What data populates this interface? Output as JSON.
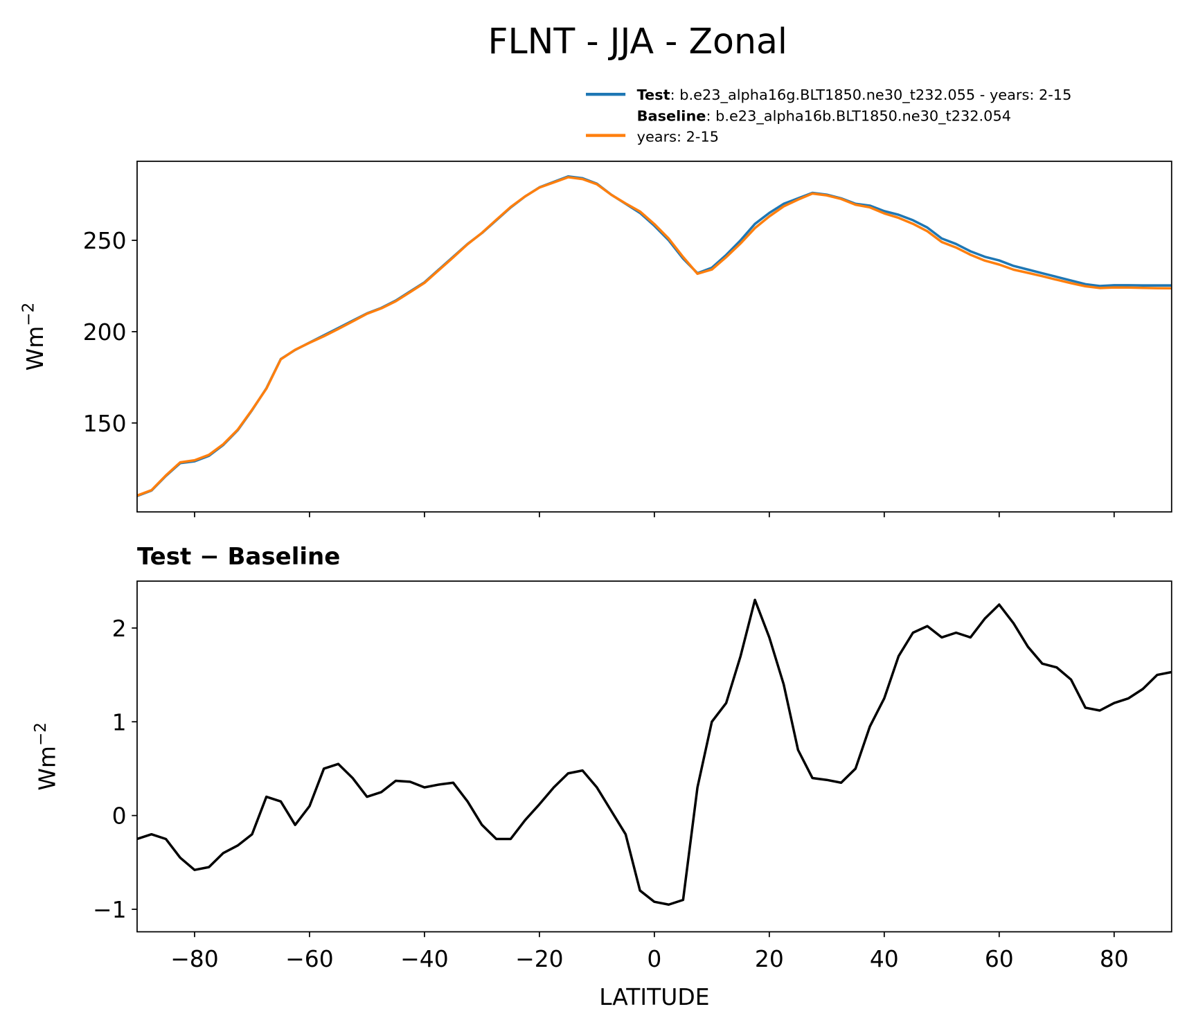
{
  "title": "FLNT - JJA - Zonal",
  "chart_data": [
    {
      "type": "line",
      "ylabel": "Wm",
      "ylabel_exponent": "−2",
      "x": [
        -90,
        -87.5,
        -85,
        -82.5,
        -80,
        -77.5,
        -75,
        -72.5,
        -70,
        -67.5,
        -65,
        -62.5,
        -60,
        -57.5,
        -55,
        -52.5,
        -50,
        -47.5,
        -45,
        -42.5,
        -40,
        -37.5,
        -35,
        -32.5,
        -30,
        -27.5,
        -25,
        -22.5,
        -20,
        -17.5,
        -15,
        -12.5,
        -10,
        -7.5,
        -5,
        -2.5,
        0,
        2.5,
        5,
        7.5,
        10,
        12.5,
        15,
        17.5,
        20,
        22.5,
        25,
        27.5,
        30,
        32.5,
        35,
        37.5,
        40,
        42.5,
        45,
        47.5,
        50,
        52.5,
        55,
        57.5,
        60,
        62.5,
        65,
        67.5,
        70,
        72.5,
        75,
        77.5,
        80,
        82.5,
        85,
        87.5,
        90
      ],
      "series": [
        {
          "name": "Test",
          "description": [
            ": b.e23_alpha16g.BLT1850.ne30_t232.055 - years: 2-15"
          ],
          "color": "#1f77b4",
          "values": [
            110,
            113,
            121,
            128,
            129,
            132,
            138,
            146,
            157,
            169,
            185,
            190,
            194,
            198,
            202,
            206,
            210,
            213,
            217,
            222,
            227,
            234,
            241,
            248,
            254,
            261,
            268,
            274,
            279,
            282,
            285,
            284,
            281,
            275,
            270,
            265,
            258,
            250,
            240,
            232,
            235,
            242,
            250,
            259,
            265,
            270,
            273,
            276,
            275,
            273,
            270,
            269,
            266,
            264,
            261,
            257,
            251,
            248,
            244,
            241,
            239,
            236,
            234,
            232,
            230,
            228,
            226,
            225,
            225.4,
            225.4,
            225.3,
            225.3,
            225.3
          ]
        },
        {
          "name": "Baseline",
          "description": [
            ": b.e23_alpha16b.BLT1850.ne30_t232.054",
            "years: 2-15"
          ],
          "color": "#ff7f0e",
          "values": [
            110.25,
            113.2,
            121.25,
            128.45,
            129.58,
            132.55,
            138.4,
            146.32,
            157.2,
            168.8,
            184.85,
            190.1,
            193.9,
            197.5,
            201.45,
            205.6,
            209.8,
            212.75,
            216.63,
            221.64,
            226.7,
            233.67,
            240.65,
            247.85,
            254.1,
            261.25,
            268.25,
            274.05,
            278.88,
            281.7,
            284.55,
            283.52,
            280.7,
            274.95,
            270.2,
            265.8,
            258.92,
            250.95,
            240.9,
            231.7,
            234,
            240.8,
            248.3,
            256.7,
            263.1,
            268.6,
            272.3,
            275.6,
            274.62,
            272.65,
            269.5,
            268.05,
            264.75,
            262.3,
            259.05,
            254.98,
            249.1,
            246.05,
            242.1,
            238.9,
            236.75,
            233.95,
            232.2,
            230.38,
            228.42,
            226.55,
            224.85,
            223.88,
            224.2,
            224.15,
            223.95,
            223.8,
            223.77
          ]
        }
      ],
      "xlim": [
        -90,
        90
      ],
      "ylim": [
        101.3,
        293.3
      ],
      "yticks": [
        150,
        200,
        250
      ]
    },
    {
      "type": "line",
      "title": "Test − Baseline",
      "xlabel": "LATITUDE",
      "ylabel": "Wm",
      "ylabel_exponent": "−2",
      "color": "#000000",
      "x": [
        -90,
        -87.5,
        -85,
        -82.5,
        -80,
        -77.5,
        -75,
        -72.5,
        -70,
        -67.5,
        -65,
        -62.5,
        -60,
        -57.5,
        -55,
        -52.5,
        -50,
        -47.5,
        -45,
        -42.5,
        -40,
        -37.5,
        -35,
        -32.5,
        -30,
        -27.5,
        -25,
        -22.5,
        -20,
        -17.5,
        -15,
        -12.5,
        -10,
        -7.5,
        -5,
        -2.5,
        0,
        2.5,
        5,
        7.5,
        10,
        12.5,
        15,
        17.5,
        20,
        22.5,
        25,
        27.5,
        30,
        32.5,
        35,
        37.5,
        40,
        42.5,
        45,
        47.5,
        50,
        52.5,
        55,
        57.5,
        60,
        62.5,
        65,
        67.5,
        70,
        72.5,
        75,
        77.5,
        80,
        82.5,
        85,
        87.5,
        90
      ],
      "values": [
        -0.25,
        -0.2,
        -0.25,
        -0.45,
        -0.58,
        -0.55,
        -0.4,
        -0.32,
        -0.2,
        0.2,
        0.15,
        -0.1,
        0.1,
        0.5,
        0.55,
        0.4,
        0.2,
        0.25,
        0.37,
        0.36,
        0.3,
        0.33,
        0.35,
        0.15,
        -0.1,
        -0.25,
        -0.25,
        -0.05,
        0.12,
        0.3,
        0.45,
        0.48,
        0.3,
        0.05,
        -0.2,
        -0.8,
        -0.92,
        -0.95,
        -0.9,
        0.3,
        1.0,
        1.2,
        1.7,
        2.3,
        1.9,
        1.4,
        0.7,
        0.4,
        0.38,
        0.35,
        0.5,
        0.95,
        1.25,
        1.7,
        1.95,
        2.02,
        1.9,
        1.95,
        1.9,
        2.1,
        2.25,
        2.05,
        1.8,
        1.62,
        1.58,
        1.45,
        1.15,
        1.12,
        1.2,
        1.25,
        1.35,
        1.5,
        1.53
      ],
      "xlim": [
        -90,
        90
      ],
      "ylim": [
        -1.24,
        2.5
      ],
      "yticks": [
        {
          "value": -1,
          "label": "−1"
        },
        0,
        1,
        2
      ],
      "xticks": [
        {
          "value": -80,
          "label": "−80"
        },
        {
          "value": -60,
          "label": "−60"
        },
        {
          "value": -40,
          "label": "−40"
        },
        {
          "value": -20,
          "label": "−20"
        },
        0,
        20,
        40,
        60,
        80
      ]
    }
  ]
}
